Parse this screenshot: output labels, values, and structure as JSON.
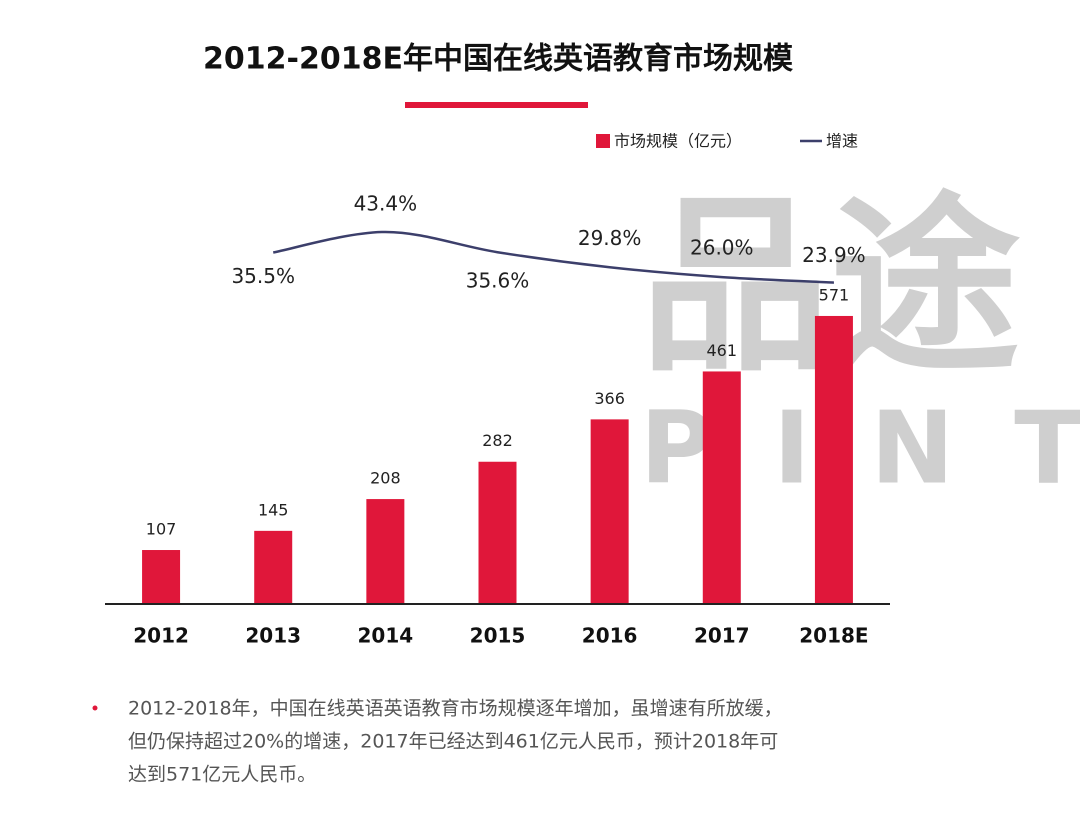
{
  "chart_data": {
    "type": "bar",
    "title": "2012-2018E年中国在线英语教育市场规模",
    "categories": [
      "2012",
      "2013",
      "2014",
      "2015",
      "2016",
      "2017",
      "2018E"
    ],
    "series": [
      {
        "name": "市场规模（亿元）",
        "type": "bar",
        "color": "#e0173a",
        "values": [
          107,
          145,
          208,
          282,
          366,
          461,
          571
        ]
      },
      {
        "name": "增速",
        "type": "line",
        "axis": "y2",
        "color": "#3c3f6b",
        "values": [
          null,
          35.5,
          43.4,
          35.6,
          29.8,
          26.0,
          23.9
        ],
        "value_labels": [
          null,
          "35.5%",
          "43.4%",
          "35.6%",
          "29.8%",
          "26.0%",
          "23.9%"
        ]
      }
    ],
    "ylim": [
      0,
      900
    ],
    "y2lim": [
      -100,
      75
    ],
    "legend": "top-right",
    "watermark": [
      "品途",
      "PINTU"
    ],
    "note": [
      "2012-2018年，中国在线英语英语教育市场规模逐年增加，虽增速有所放缓，",
      "但仍保持超过20%的增速，2017年已经达到461亿元人民币，预计2018年可",
      "达到571亿元人民币。"
    ]
  }
}
